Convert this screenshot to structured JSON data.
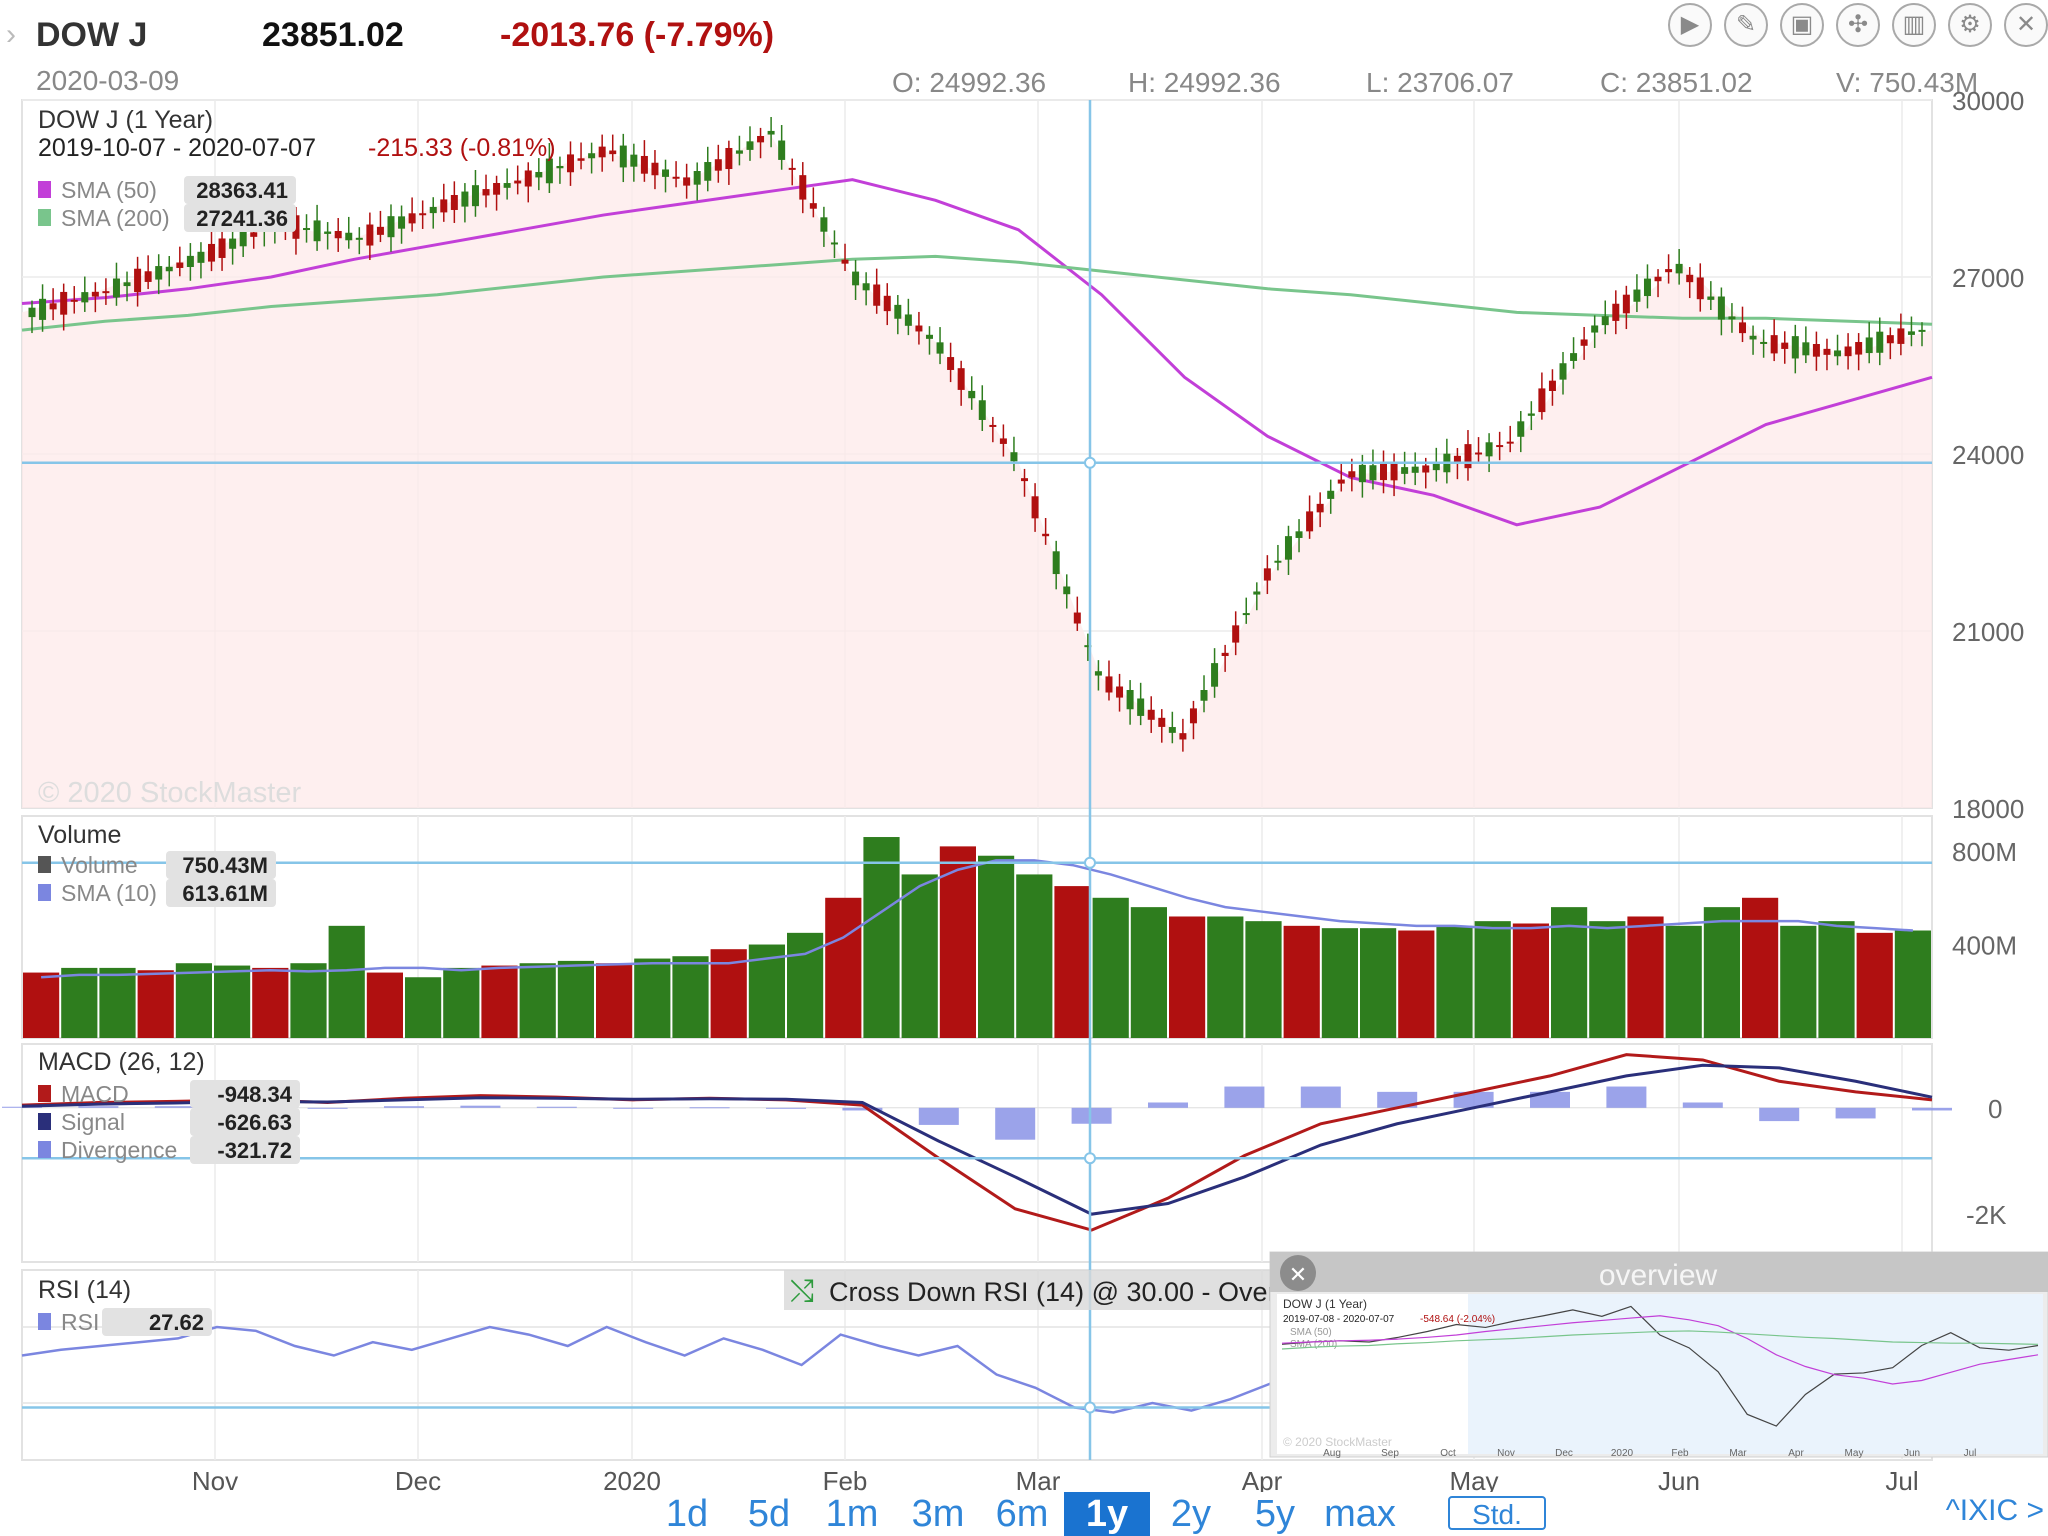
{
  "header": {
    "symbol": "DOW J",
    "price": "23851.02",
    "change": "-2013.76 (-7.79%)",
    "date": "2020-03-09",
    "ohlcv": [
      "O: 24992.36",
      "H: 24992.36",
      "L: 23706.07",
      "C: 23851.02",
      "V: 750.43M"
    ]
  },
  "toolbar": {
    "icons": [
      "play-icon",
      "pen-icon",
      "image-icon",
      "fullscreen-icon",
      "indicators-icon",
      "gear-icon",
      "close-icon"
    ],
    "glyphs": [
      "▶",
      "✎",
      "▣",
      "✣",
      "▥",
      "⚙",
      "✕"
    ]
  },
  "main_panel": {
    "title": "DOW J (1 Year)",
    "range": "2019-10-07 - 2020-07-07",
    "range_change": "-215.33 (-0.81%)",
    "legend": [
      {
        "label": "SMA (50)",
        "value": "28363.41",
        "color": "#c23fd8"
      },
      {
        "label": "SMA (200)",
        "value": "27241.36",
        "color": "#79c58c"
      }
    ],
    "watermark": "© 2020 StockMaster",
    "y_ticks": [
      "30000",
      "27000",
      "24000",
      "21000",
      "18000"
    ]
  },
  "volume_panel": {
    "title": "Volume",
    "legend": [
      {
        "label": "Volume",
        "value": "750.43M",
        "color": "#555555"
      },
      {
        "label": "SMA (10)",
        "value": "613.61M",
        "color": "#7b86e0"
      }
    ],
    "y_ticks": [
      "800M",
      "400M"
    ]
  },
  "macd_panel": {
    "title": "MACD (26, 12)",
    "legend": [
      {
        "label": "MACD",
        "value": "-948.34",
        "color": "#b21a1a"
      },
      {
        "label": "Signal",
        "value": "-626.63",
        "color": "#2a2f7a"
      },
      {
        "label": "Divergence",
        "value": "-321.72",
        "color": "#7b86e0"
      }
    ],
    "y_ticks": [
      "0",
      "-2K"
    ]
  },
  "rsi_panel": {
    "title": "RSI (14)",
    "legend": [
      {
        "label": "RSI",
        "value": "27.62",
        "color": "#7b86e0"
      }
    ],
    "alert": "Cross Down RSI (14) @ 30.00 - Overs",
    "alert_tail": "ld"
  },
  "overview": {
    "title": "overview",
    "mini_title": "DOW J (1 Year)",
    "mini_range": "2019-07-08 - 2020-07-07",
    "mini_change": "-548.64 (-2.04%)",
    "mini_legend": [
      "SMA (50)",
      "SMA (200)"
    ],
    "mini_watermark": "© 2020 StockMaster",
    "mini_x_labels": [
      "Aug",
      "Sep",
      "Oct",
      "Nov",
      "Dec",
      "2020",
      "Feb",
      "Mar",
      "Apr",
      "May",
      "Jun",
      "Jul"
    ]
  },
  "x_axis": [
    "Nov",
    "Dec",
    "2020",
    "Feb",
    "Mar",
    "Apr",
    "May",
    "Jun",
    "Jul"
  ],
  "timeframes": [
    "1d",
    "5d",
    "1m",
    "3m",
    "6m",
    "1y",
    "2y",
    "5y",
    "max"
  ],
  "active_timeframe": "1y",
  "std_label": "Std.",
  "ixic_label": "^IXIC >",
  "colors": {
    "up": "#2e7d1e",
    "down": "#b01010",
    "crosshair": "#86c5e8",
    "change": "#b01010"
  },
  "chart_data": [
    {
      "type": "line",
      "subtype": "candlestick-close",
      "title": "DOW J (1 Year)",
      "x": [
        "2019-10-07",
        "2019-10-21",
        "2019-11-04",
        "2019-11-18",
        "2019-12-02",
        "2019-12-16",
        "2020-01-02",
        "2020-01-16",
        "2020-02-03",
        "2020-02-12",
        "2020-02-24",
        "2020-03-02",
        "2020-03-09",
        "2020-03-16",
        "2020-03-23",
        "2020-04-06",
        "2020-04-20",
        "2020-05-04",
        "2020-05-18",
        "2020-06-01",
        "2020-06-08",
        "2020-06-15",
        "2020-06-29",
        "2020-07-07"
      ],
      "series": [
        {
          "name": "DOW J",
          "values": [
            26400,
            26800,
            27300,
            27900,
            27650,
            28200,
            28650,
            29150,
            28600,
            29450,
            27000,
            25900,
            23851,
            20200,
            19200,
            21900,
            23650,
            23750,
            24200,
            26100,
            27200,
            25900,
            25700,
            26100
          ]
        },
        {
          "name": "SMA (50)",
          "values": [
            26550,
            26650,
            26800,
            27000,
            27300,
            27550,
            27800,
            28050,
            28250,
            28450,
            28650,
            28300,
            27800,
            26700,
            25300,
            24300,
            23600,
            23300,
            22800,
            23100,
            23800,
            24500,
            24900,
            25300
          ]
        },
        {
          "name": "SMA (200)",
          "values": [
            26100,
            26250,
            26350,
            26500,
            26600,
            26700,
            26850,
            27000,
            27100,
            27200,
            27300,
            27350,
            27250,
            27100,
            26950,
            26800,
            26700,
            26550,
            26400,
            26350,
            26300,
            26300,
            26250,
            26200
          ]
        }
      ],
      "ylim": [
        18000,
        30000
      ]
    },
    {
      "type": "bar",
      "title": "Volume",
      "ylim": [
        0,
        950
      ],
      "note": "values in M, sampled across the year",
      "values": [
        280,
        300,
        300,
        290,
        320,
        310,
        300,
        320,
        480,
        280,
        260,
        300,
        310,
        320,
        330,
        320,
        340,
        350,
        380,
        400,
        450,
        600,
        860,
        700,
        820,
        780,
        700,
        650,
        600,
        560,
        520,
        520,
        500,
        480,
        470,
        470,
        460,
        480,
        500,
        490,
        560,
        500,
        520,
        480,
        560,
        600,
        480,
        500,
        450,
        460
      ],
      "series": [
        {
          "name": "SMA (10)",
          "values": [
            260,
            270,
            270,
            275,
            280,
            285,
            290,
            285,
            290,
            300,
            300,
            290,
            300,
            305,
            310,
            315,
            320,
            320,
            320,
            340,
            360,
            430,
            540,
            650,
            720,
            760,
            760,
            740,
            700,
            650,
            600,
            560,
            540,
            520,
            500,
            490,
            480,
            480,
            470,
            470,
            480,
            470,
            480,
            490,
            500,
            500,
            500,
            480,
            470,
            460
          ]
        }
      ]
    },
    {
      "type": "line",
      "title": "MACD (26, 12)",
      "ylim": [
        -2900,
        1200
      ],
      "series": [
        {
          "name": "MACD",
          "values": [
            50,
            100,
            120,
            150,
            100,
            180,
            230,
            200,
            150,
            180,
            150,
            50,
            -948,
            -1900,
            -2300,
            -1700,
            -900,
            -300,
            0,
            300,
            600,
            1000,
            900,
            500,
            300,
            150
          ]
        },
        {
          "name": "Signal",
          "values": [
            30,
            70,
            90,
            120,
            110,
            150,
            190,
            180,
            160,
            170,
            160,
            100,
            -626,
            -1300,
            -2000,
            -1800,
            -1300,
            -700,
            -300,
            0,
            300,
            600,
            800,
            750,
            500,
            200
          ]
        },
        {
          "name": "Divergence",
          "values": [
            20,
            30,
            30,
            30,
            -10,
            30,
            40,
            20,
            -10,
            10,
            -10,
            -50,
            -322,
            -600,
            -300,
            100,
            400,
            400,
            300,
            300,
            300,
            400,
            100,
            -250,
            -200,
            -50
          ]
        }
      ]
    },
    {
      "type": "line",
      "title": "RSI (14)",
      "ylim": [
        0,
        100
      ],
      "series": [
        {
          "name": "RSI",
          "values": [
            55,
            58,
            60,
            62,
            64,
            70,
            68,
            60,
            55,
            62,
            58,
            64,
            70,
            66,
            60,
            70,
            62,
            55,
            64,
            58,
            50,
            66,
            60,
            55,
            60,
            45,
            38,
            27.62,
            25,
            30,
            26,
            32,
            40,
            50,
            56,
            58,
            60,
            62,
            55,
            60,
            65,
            58,
            64,
            62,
            55,
            60,
            58,
            62,
            60,
            62
          ]
        }
      ]
    }
  ]
}
